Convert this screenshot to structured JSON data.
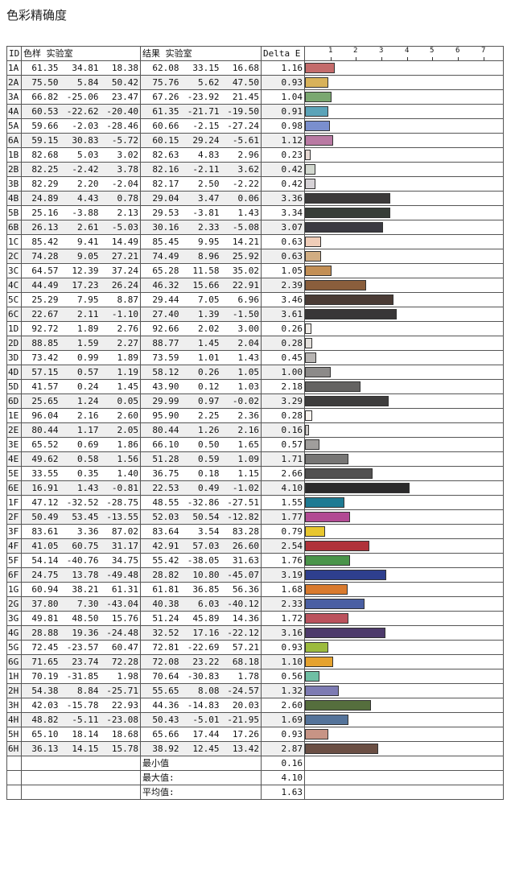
{
  "title": "色彩精确度",
  "chart_data": {
    "type": "table",
    "columns": [
      "ID",
      "色样 实验室",
      "结果 实验室",
      "Delta E"
    ],
    "axis_ticks": [
      "1",
      "2",
      "3",
      "4",
      "5",
      "6",
      "7"
    ],
    "xlim": [
      0,
      7.8
    ],
    "rows": [
      {
        "id": "1A",
        "s": [
          "61.35",
          "34.81",
          "18.38"
        ],
        "r": [
          "62.08",
          "33.15",
          "16.68"
        ],
        "de": "1.16",
        "v": 1.16,
        "color": "#c46b6b"
      },
      {
        "id": "2A",
        "s": [
          "75.50",
          "5.84",
          "50.42"
        ],
        "r": [
          "75.76",
          "5.62",
          "47.50"
        ],
        "de": "0.93",
        "v": 0.93,
        "color": "#d8b25a"
      },
      {
        "id": "3A",
        "s": [
          "66.82",
          "-25.06",
          "23.47"
        ],
        "r": [
          "67.26",
          "-23.92",
          "21.45"
        ],
        "de": "1.04",
        "v": 1.04,
        "color": "#7aa870"
      },
      {
        "id": "4A",
        "s": [
          "60.53",
          "-22.62",
          "-20.40"
        ],
        "r": [
          "61.35",
          "-21.71",
          "-19.50"
        ],
        "de": "0.91",
        "v": 0.91,
        "color": "#5ba3b8"
      },
      {
        "id": "5A",
        "s": [
          "59.66",
          "-2.03",
          "-28.46"
        ],
        "r": [
          "60.66",
          "-2.15",
          "-27.24"
        ],
        "de": "0.98",
        "v": 0.98,
        "color": "#7a8fce"
      },
      {
        "id": "6A",
        "s": [
          "59.15",
          "30.83",
          "-5.72"
        ],
        "r": [
          "60.15",
          "29.24",
          "-5.61"
        ],
        "de": "1.12",
        "v": 1.12,
        "color": "#b97aa3"
      },
      {
        "id": "1B",
        "s": [
          "82.68",
          "5.03",
          "3.02"
        ],
        "r": [
          "82.63",
          "4.83",
          "2.96"
        ],
        "de": "0.23",
        "v": 0.23,
        "color": "#e6d8d2"
      },
      {
        "id": "2B",
        "s": [
          "82.25",
          "-2.42",
          "3.78"
        ],
        "r": [
          "82.16",
          "-2.11",
          "3.62"
        ],
        "de": "0.42",
        "v": 0.42,
        "color": "#d2d8cf"
      },
      {
        "id": "3B",
        "s": [
          "82.29",
          "2.20",
          "-2.04"
        ],
        "r": [
          "82.17",
          "2.50",
          "-2.22"
        ],
        "de": "0.42",
        "v": 0.42,
        "color": "#d6d2d6"
      },
      {
        "id": "4B",
        "s": [
          "24.89",
          "4.43",
          "0.78"
        ],
        "r": [
          "29.04",
          "3.47",
          "0.06"
        ],
        "de": "3.36",
        "v": 3.36,
        "color": "#3c3a3a"
      },
      {
        "id": "5B",
        "s": [
          "25.16",
          "-3.88",
          "2.13"
        ],
        "r": [
          "29.53",
          "-3.81",
          "1.43"
        ],
        "de": "3.34",
        "v": 3.34,
        "color": "#373d38"
      },
      {
        "id": "6B",
        "s": [
          "26.13",
          "2.61",
          "-5.03"
        ],
        "r": [
          "30.16",
          "2.33",
          "-5.08"
        ],
        "de": "3.07",
        "v": 3.07,
        "color": "#3b3a42"
      },
      {
        "id": "1C",
        "s": [
          "85.42",
          "9.41",
          "14.49"
        ],
        "r": [
          "85.45",
          "9.95",
          "14.21"
        ],
        "de": "0.63",
        "v": 0.63,
        "color": "#efcdb8"
      },
      {
        "id": "2C",
        "s": [
          "74.28",
          "9.05",
          "27.21"
        ],
        "r": [
          "74.49",
          "8.96",
          "25.92"
        ],
        "de": "0.63",
        "v": 0.63,
        "color": "#d1ad82"
      },
      {
        "id": "3C",
        "s": [
          "64.57",
          "12.39",
          "37.24"
        ],
        "r": [
          "65.28",
          "11.58",
          "35.02"
        ],
        "de": "1.05",
        "v": 1.05,
        "color": "#c38f55"
      },
      {
        "id": "4C",
        "s": [
          "44.49",
          "17.23",
          "26.24"
        ],
        "r": [
          "46.32",
          "15.66",
          "22.91"
        ],
        "de": "2.39",
        "v": 2.39,
        "color": "#8a5e3c"
      },
      {
        "id": "5C",
        "s": [
          "25.29",
          "7.95",
          "8.87"
        ],
        "r": [
          "29.44",
          "7.05",
          "6.96"
        ],
        "de": "3.46",
        "v": 3.46,
        "color": "#4a3b35"
      },
      {
        "id": "6C",
        "s": [
          "22.67",
          "2.11",
          "-1.10"
        ],
        "r": [
          "27.40",
          "1.39",
          "-1.50"
        ],
        "de": "3.61",
        "v": 3.61,
        "color": "#383637"
      },
      {
        "id": "1D",
        "s": [
          "92.72",
          "1.89",
          "2.76"
        ],
        "r": [
          "92.66",
          "2.02",
          "3.00"
        ],
        "de": "0.26",
        "v": 0.26,
        "color": "#f0ebe6"
      },
      {
        "id": "2D",
        "s": [
          "88.85",
          "1.59",
          "2.27"
        ],
        "r": [
          "88.77",
          "1.45",
          "2.04"
        ],
        "de": "0.28",
        "v": 0.28,
        "color": "#e3dfdb"
      },
      {
        "id": "3D",
        "s": [
          "73.42",
          "0.99",
          "1.89"
        ],
        "r": [
          "73.59",
          "1.01",
          "1.43"
        ],
        "de": "0.45",
        "v": 0.45,
        "color": "#b7b4b2"
      },
      {
        "id": "4D",
        "s": [
          "57.15",
          "0.57",
          "1.19"
        ],
        "r": [
          "58.12",
          "0.26",
          "1.05"
        ],
        "de": "1.00",
        "v": 1.0,
        "color": "#8c8a89"
      },
      {
        "id": "5D",
        "s": [
          "41.57",
          "0.24",
          "1.45"
        ],
        "r": [
          "43.90",
          "0.12",
          "1.03"
        ],
        "de": "2.18",
        "v": 2.18,
        "color": "#646362"
      },
      {
        "id": "6D",
        "s": [
          "25.65",
          "1.24",
          "0.05"
        ],
        "r": [
          "29.99",
          "0.97",
          "-0.02"
        ],
        "de": "3.29",
        "v": 3.29,
        "color": "#3e3d3d"
      },
      {
        "id": "1E",
        "s": [
          "96.04",
          "2.16",
          "2.60"
        ],
        "r": [
          "95.90",
          "2.25",
          "2.36"
        ],
        "de": "0.28",
        "v": 0.28,
        "color": "#f7f2ee"
      },
      {
        "id": "2E",
        "s": [
          "80.44",
          "1.17",
          "2.05"
        ],
        "r": [
          "80.44",
          "1.26",
          "2.16"
        ],
        "de": "0.16",
        "v": 0.16,
        "color": "#cbc8c6"
      },
      {
        "id": "3E",
        "s": [
          "65.52",
          "0.69",
          "1.86"
        ],
        "r": [
          "66.10",
          "0.50",
          "1.65"
        ],
        "de": "0.57",
        "v": 0.57,
        "color": "#a09e9c"
      },
      {
        "id": "4E",
        "s": [
          "49.62",
          "0.58",
          "1.56"
        ],
        "r": [
          "51.28",
          "0.59",
          "1.09"
        ],
        "de": "1.71",
        "v": 1.71,
        "color": "#777675"
      },
      {
        "id": "5E",
        "s": [
          "33.55",
          "0.35",
          "1.40"
        ],
        "r": [
          "36.75",
          "0.18",
          "1.15"
        ],
        "de": "2.66",
        "v": 2.66,
        "color": "#515050"
      },
      {
        "id": "6E",
        "s": [
          "16.91",
          "1.43",
          "-0.81"
        ],
        "r": [
          "22.53",
          "0.49",
          "-1.02"
        ],
        "de": "4.10",
        "v": 4.1,
        "color": "#2b2a2b"
      },
      {
        "id": "1F",
        "s": [
          "47.12",
          "-32.52",
          "-28.75"
        ],
        "r": [
          "48.55",
          "-32.86",
          "-27.51"
        ],
        "de": "1.55",
        "v": 1.55,
        "color": "#1e7a93"
      },
      {
        "id": "2F",
        "s": [
          "50.49",
          "53.45",
          "-13.55"
        ],
        "r": [
          "52.03",
          "50.54",
          "-12.82"
        ],
        "de": "1.77",
        "v": 1.77,
        "color": "#b24a93"
      },
      {
        "id": "3F",
        "s": [
          "83.61",
          "3.36",
          "87.02"
        ],
        "r": [
          "83.64",
          "3.54",
          "83.28"
        ],
        "de": "0.79",
        "v": 0.79,
        "color": "#e8c62e"
      },
      {
        "id": "4F",
        "s": [
          "41.05",
          "60.75",
          "31.17"
        ],
        "r": [
          "42.91",
          "57.03",
          "26.60"
        ],
        "de": "2.54",
        "v": 2.54,
        "color": "#b0323a"
      },
      {
        "id": "5F",
        "s": [
          "54.14",
          "-40.76",
          "34.75"
        ],
        "r": [
          "55.42",
          "-38.05",
          "31.63"
        ],
        "de": "1.76",
        "v": 1.76,
        "color": "#4a944a"
      },
      {
        "id": "6F",
        "s": [
          "24.75",
          "13.78",
          "-49.48"
        ],
        "r": [
          "28.82",
          "10.80",
          "-45.07"
        ],
        "de": "3.19",
        "v": 3.19,
        "color": "#2e3f8e"
      },
      {
        "id": "1G",
        "s": [
          "60.94",
          "38.21",
          "61.31"
        ],
        "r": [
          "61.81",
          "36.85",
          "56.36"
        ],
        "de": "1.68",
        "v": 1.68,
        "color": "#d97a2d"
      },
      {
        "id": "2G",
        "s": [
          "37.80",
          "7.30",
          "-43.04"
        ],
        "r": [
          "40.38",
          "6.03",
          "-40.12"
        ],
        "de": "2.33",
        "v": 2.33,
        "color": "#4a5fa3"
      },
      {
        "id": "3G",
        "s": [
          "49.81",
          "48.50",
          "15.76"
        ],
        "r": [
          "51.24",
          "45.89",
          "14.36"
        ],
        "de": "1.72",
        "v": 1.72,
        "color": "#bb525d"
      },
      {
        "id": "4G",
        "s": [
          "28.88",
          "19.36",
          "-24.48"
        ],
        "r": [
          "32.52",
          "17.16",
          "-22.12"
        ],
        "de": "3.16",
        "v": 3.16,
        "color": "#4d3a6b"
      },
      {
        "id": "5G",
        "s": [
          "72.45",
          "-23.57",
          "60.47"
        ],
        "r": [
          "72.81",
          "-22.69",
          "57.21"
        ],
        "de": "0.93",
        "v": 0.93,
        "color": "#9cbb3e"
      },
      {
        "id": "6G",
        "s": [
          "71.65",
          "23.74",
          "72.28"
        ],
        "r": [
          "72.08",
          "23.22",
          "68.18"
        ],
        "de": "1.10",
        "v": 1.1,
        "color": "#e5a22e"
      },
      {
        "id": "1H",
        "s": [
          "70.19",
          "-31.85",
          "1.98"
        ],
        "r": [
          "70.64",
          "-30.83",
          "1.78"
        ],
        "de": "0.56",
        "v": 0.56,
        "color": "#6fbfa4"
      },
      {
        "id": "2H",
        "s": [
          "54.38",
          "8.84",
          "-25.71"
        ],
        "r": [
          "55.65",
          "8.08",
          "-24.57"
        ],
        "de": "1.32",
        "v": 1.32,
        "color": "#7d7bb3"
      },
      {
        "id": "3H",
        "s": [
          "42.03",
          "-15.78",
          "22.93"
        ],
        "r": [
          "44.36",
          "-14.83",
          "20.03"
        ],
        "de": "2.60",
        "v": 2.6,
        "color": "#556e3d"
      },
      {
        "id": "4H",
        "s": [
          "48.82",
          "-5.11",
          "-23.08"
        ],
        "r": [
          "50.43",
          "-5.01",
          "-21.95"
        ],
        "de": "1.69",
        "v": 1.69,
        "color": "#54739a"
      },
      {
        "id": "5H",
        "s": [
          "65.10",
          "18.14",
          "18.68"
        ],
        "r": [
          "65.66",
          "17.44",
          "17.26"
        ],
        "de": "0.93",
        "v": 0.93,
        "color": "#c79485"
      },
      {
        "id": "6H",
        "s": [
          "36.13",
          "14.15",
          "15.78"
        ],
        "r": [
          "38.92",
          "12.45",
          "13.42"
        ],
        "de": "2.87",
        "v": 2.87,
        "color": "#6b4f44"
      }
    ],
    "summary": [
      {
        "label": "最小值",
        "value": "0.16"
      },
      {
        "label": "最大值:",
        "value": "4.10"
      },
      {
        "label": "平均值:",
        "value": "1.63"
      }
    ]
  }
}
